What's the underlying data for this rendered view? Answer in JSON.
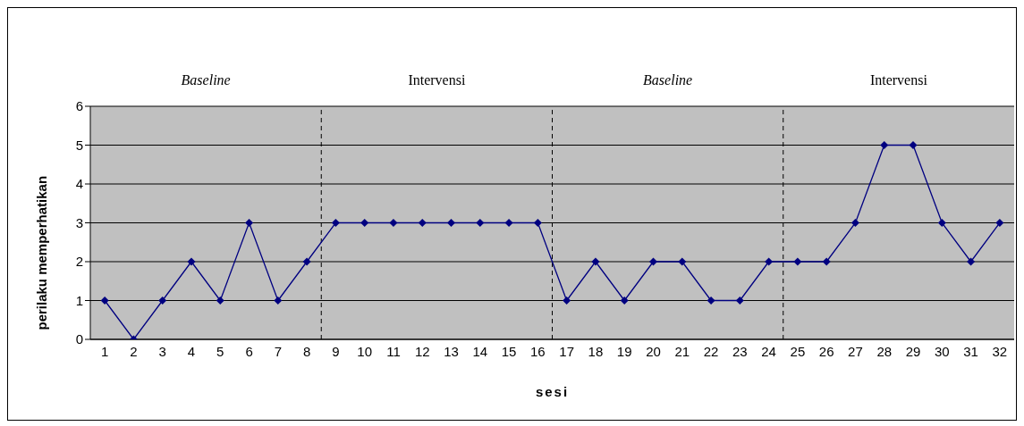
{
  "chart_data": {
    "type": "line",
    "xlabel": "sesi",
    "ylabel": "perilaku memperhatikan",
    "x": [
      1,
      2,
      3,
      4,
      5,
      6,
      7,
      8,
      9,
      10,
      11,
      12,
      13,
      14,
      15,
      16,
      17,
      18,
      19,
      20,
      21,
      22,
      23,
      24,
      25,
      26,
      27,
      28,
      29,
      30,
      31,
      32
    ],
    "series": [
      {
        "color": "#000080",
        "values": [
          1,
          0,
          1,
          2,
          1,
          3,
          1,
          2,
          3,
          3,
          3,
          3,
          3,
          3,
          3,
          3,
          1,
          2,
          1,
          2,
          2,
          1,
          1,
          2,
          2,
          2,
          3,
          5,
          5,
          3,
          2,
          3
        ]
      }
    ],
    "xlim": [
      0.5,
      32.5
    ],
    "xticks": [
      1,
      2,
      3,
      4,
      5,
      6,
      7,
      8,
      9,
      10,
      11,
      12,
      13,
      14,
      15,
      16,
      17,
      18,
      19,
      20,
      21,
      22,
      23,
      24,
      25,
      26,
      27,
      28,
      29,
      30,
      31,
      32
    ],
    "ylim": [
      0,
      6
    ],
    "yticks": [
      0,
      1,
      2,
      3,
      4,
      5,
      6
    ],
    "ref_lines": [
      {
        "axis": "x",
        "value": 8.5,
        "color": "#000000",
        "line_style": "dashed"
      },
      {
        "axis": "x",
        "value": 16.5,
        "color": "#000000",
        "line_style": "dashed"
      },
      {
        "axis": "x",
        "value": 24.5,
        "color": "#000000",
        "line_style": "dashed"
      }
    ],
    "annotations": [
      "Baseline",
      "Intervensi",
      "Baseline",
      "Intervensi"
    ],
    "grid": "y",
    "legend": false,
    "marker": "diamond",
    "line_style": "solid"
  }
}
